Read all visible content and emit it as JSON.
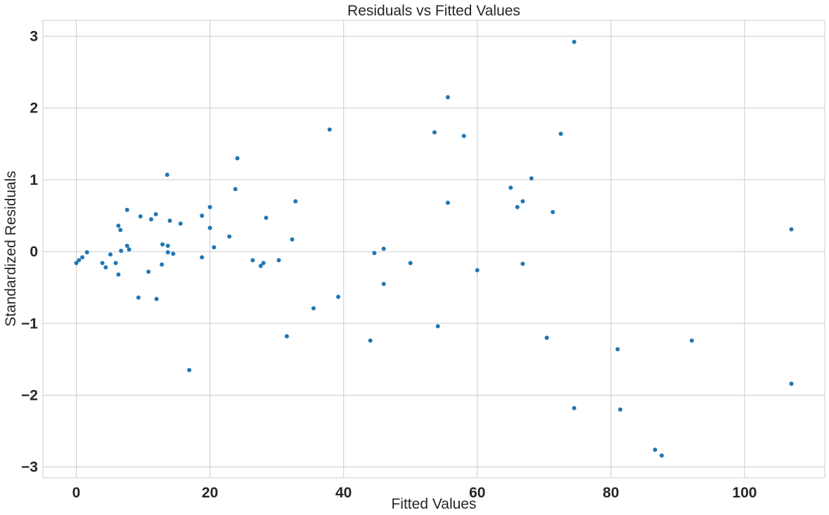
{
  "chart_data": {
    "type": "scatter",
    "title": "Residuals vs Fitted Values",
    "xlabel": "Fitted Values",
    "ylabel": "Standardized Residuals",
    "xlim": [
      -5,
      112
    ],
    "ylim": [
      -3.15,
      3.22
    ],
    "xticks": [
      0,
      20,
      40,
      60,
      80,
      100
    ],
    "yticks": [
      3,
      2,
      1,
      0,
      -1,
      -2,
      -3
    ],
    "xtick_labels": [
      "0",
      "20",
      "40",
      "60",
      "80",
      "100"
    ],
    "ytick_labels": [
      "3",
      "2",
      "1",
      "0",
      "−1",
      "−2",
      "−3"
    ],
    "grid": true,
    "color": "#1f77b4",
    "points": [
      [
        0.0,
        -0.16
      ],
      [
        0.4,
        -0.12
      ],
      [
        0.9,
        -0.08
      ],
      [
        1.6,
        -0.01
      ],
      [
        3.9,
        -0.16
      ],
      [
        4.4,
        -0.22
      ],
      [
        5.1,
        -0.04
      ],
      [
        5.9,
        -0.16
      ],
      [
        6.3,
        0.36
      ],
      [
        6.3,
        -0.32
      ],
      [
        6.6,
        0.3
      ],
      [
        6.7,
        0.01
      ],
      [
        7.6,
        0.58
      ],
      [
        7.6,
        0.08
      ],
      [
        7.9,
        0.03
      ],
      [
        9.3,
        -0.64
      ],
      [
        9.6,
        0.49
      ],
      [
        10.8,
        -0.28
      ],
      [
        11.2,
        0.45
      ],
      [
        11.9,
        0.52
      ],
      [
        12.0,
        -0.66
      ],
      [
        12.8,
        -0.18
      ],
      [
        12.9,
        0.1
      ],
      [
        13.6,
        1.07
      ],
      [
        13.7,
        0.08
      ],
      [
        13.7,
        -0.01
      ],
      [
        14.0,
        0.43
      ],
      [
        14.5,
        -0.03
      ],
      [
        15.6,
        0.39
      ],
      [
        16.9,
        -1.65
      ],
      [
        18.8,
        0.5
      ],
      [
        18.8,
        -0.08
      ],
      [
        20.0,
        0.62
      ],
      [
        20.0,
        0.33
      ],
      [
        20.6,
        0.06
      ],
      [
        22.9,
        0.21
      ],
      [
        23.8,
        0.87
      ],
      [
        24.1,
        1.3
      ],
      [
        26.4,
        -0.12
      ],
      [
        27.6,
        -0.2
      ],
      [
        28.0,
        -0.16
      ],
      [
        28.4,
        0.47
      ],
      [
        30.3,
        -0.12
      ],
      [
        31.5,
        -1.18
      ],
      [
        32.3,
        0.17
      ],
      [
        32.8,
        0.7
      ],
      [
        35.5,
        -0.79
      ],
      [
        37.9,
        1.7
      ],
      [
        39.2,
        -0.63
      ],
      [
        44.0,
        -1.24
      ],
      [
        44.6,
        -0.02
      ],
      [
        46.0,
        0.04
      ],
      [
        46.0,
        -0.45
      ],
      [
        50.0,
        -0.16
      ],
      [
        53.6,
        1.66
      ],
      [
        54.1,
        -1.04
      ],
      [
        55.6,
        2.15
      ],
      [
        55.6,
        0.68
      ],
      [
        58.0,
        1.61
      ],
      [
        60.0,
        -0.26
      ],
      [
        65.0,
        0.89
      ],
      [
        66.0,
        0.62
      ],
      [
        66.8,
        0.7
      ],
      [
        66.8,
        -0.17
      ],
      [
        68.1,
        1.02
      ],
      [
        70.4,
        -1.2
      ],
      [
        71.3,
        0.55
      ],
      [
        72.5,
        1.64
      ],
      [
        74.5,
        2.92
      ],
      [
        74.5,
        -2.18
      ],
      [
        81.0,
        -1.36
      ],
      [
        81.4,
        -2.2
      ],
      [
        86.6,
        -2.76
      ],
      [
        87.6,
        -2.84
      ],
      [
        92.1,
        -1.24
      ],
      [
        107.0,
        0.31
      ],
      [
        107.0,
        -1.84
      ]
    ]
  }
}
